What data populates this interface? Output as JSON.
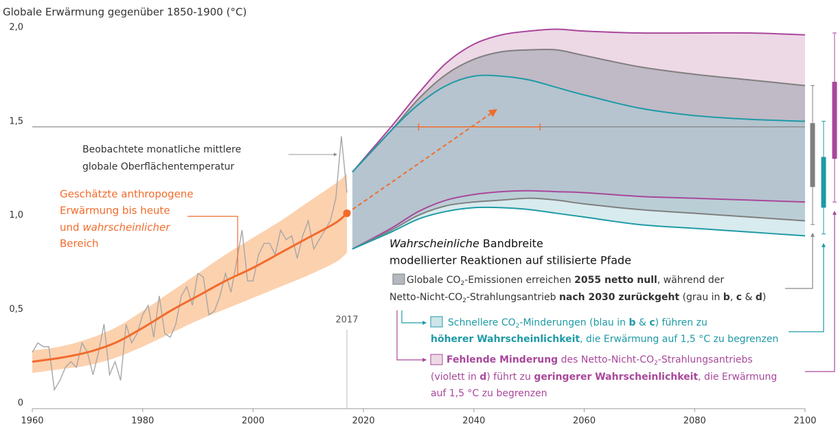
{
  "chart_data": {
    "type": "line",
    "title": "Globale Erwärmung gegenüber 1850-1900 (°C)",
    "xlim": [
      1960,
      2100
    ],
    "ylim": [
      0,
      2
    ],
    "xticks": [
      1960,
      1980,
      2000,
      2020,
      2040,
      2060,
      2080,
      2100
    ],
    "yticks": [
      0,
      {
        "value": 0.5,
        "label": "0,5"
      },
      {
        "value": 1,
        "label": "1,0"
      },
      {
        "value": 1.5,
        "label": "1,5"
      },
      {
        "value": 2,
        "label": "2,0"
      }
    ],
    "threshold": 1.5,
    "year_marker": 2017,
    "observed": {
      "color": "#a6a6a6",
      "label": [
        "Beobachtete monatliche mittlere",
        "globale Oberflächentemperatur"
      ],
      "x": [
        1960,
        1961,
        1962,
        1963,
        1964,
        1965,
        1966,
        1967,
        1968,
        1969,
        1970,
        1971,
        1972,
        1973,
        1974,
        1975,
        1976,
        1977,
        1978,
        1979,
        1980,
        1981,
        1982,
        1983,
        1984,
        1985,
        1986,
        1987,
        1988,
        1989,
        1990,
        1991,
        1992,
        1993,
        1994,
        1995,
        1996,
        1997,
        1998,
        1999,
        2000,
        2001,
        2002,
        2003,
        2004,
        2005,
        2006,
        2007,
        2008,
        2009,
        2010,
        2011,
        2012,
        2013,
        2014,
        2015,
        2016,
        2017
      ],
      "values": [
        0.3,
        0.35,
        0.33,
        0.33,
        0.1,
        0.15,
        0.22,
        0.25,
        0.22,
        0.35,
        0.3,
        0.18,
        0.3,
        0.45,
        0.18,
        0.25,
        0.15,
        0.45,
        0.35,
        0.4,
        0.5,
        0.55,
        0.38,
        0.6,
        0.4,
        0.38,
        0.45,
        0.6,
        0.65,
        0.55,
        0.72,
        0.7,
        0.5,
        0.52,
        0.6,
        0.72,
        0.62,
        0.78,
        0.95,
        0.68,
        0.68,
        0.82,
        0.88,
        0.88,
        0.82,
        0.95,
        0.9,
        0.92,
        0.8,
        0.92,
        1.0,
        0.85,
        0.9,
        0.95,
        1.0,
        1.12,
        1.45,
        1.15
      ]
    },
    "anthropogenic": {
      "color": "#f26b2c",
      "band_color": "#fcc9a0",
      "label": [
        "Geschätzte anthropogene",
        "Erwärmung bis heute",
        "und ",
        "wahrscheinlicher",
        "Bereich"
      ],
      "x": [
        1960,
        1965,
        1970,
        1975,
        1980,
        1985,
        1990,
        1995,
        2000,
        2005,
        2010,
        2015,
        2017
      ],
      "values": [
        0.25,
        0.27,
        0.3,
        0.35,
        0.43,
        0.52,
        0.6,
        0.68,
        0.75,
        0.83,
        0.91,
        0.99,
        1.04
      ],
      "lower": [
        0.19,
        0.21,
        0.23,
        0.27,
        0.33,
        0.4,
        0.47,
        0.53,
        0.59,
        0.65,
        0.71,
        0.78,
        0.83
      ],
      "upper": [
        0.31,
        0.33,
        0.37,
        0.43,
        0.52,
        0.62,
        0.72,
        0.82,
        0.91,
        1.0,
        1.1,
        1.2,
        1.25
      ]
    },
    "arrow": {
      "x": [
        2017,
        2044
      ],
      "y": [
        1.04,
        1.59
      ]
    },
    "crossing": {
      "x": [
        2030,
        2052
      ],
      "y": 1.5
    },
    "pathways_title": [
      "Wahrscheinliche",
      " Bandbreite",
      "modellierter Reaktionen auf stilisierte Pfade"
    ],
    "pathways_x": [
      2018,
      2025,
      2030,
      2035,
      2040,
      2045,
      2050,
      2055,
      2060,
      2070,
      2080,
      2090,
      2100
    ],
    "pathways": {
      "purple": {
        "color": "#a9479b",
        "fill": "#edd8e6",
        "upper": [
          1.26,
          1.5,
          1.68,
          1.84,
          1.94,
          1.99,
          2.01,
          2.02,
          2.01,
          2.0,
          2.0,
          2.0,
          1.99
        ],
        "lower": [
          0.85,
          0.96,
          1.05,
          1.11,
          1.14,
          1.155,
          1.16,
          1.155,
          1.15,
          1.13,
          1.12,
          1.11,
          1.1
        ],
        "likely": [
          1.33,
          1.74
        ],
        "whisker": [
          1.1,
          2.0
        ],
        "text": [
          [
            "Fehlende Minderung",
            " des Netto-Nicht-CO",
            "2",
            "-Strahlungsantriebs"
          ],
          [
            "(violett in ",
            "d",
            ") führt zu ",
            "geringerer Wahrscheinlichkeit",
            ", die Erwärmung"
          ],
          [
            "auf 1,5 °C zu begrenzen"
          ]
        ]
      },
      "gray": {
        "color": "#7f7f7f",
        "fill": "#9aa0ab",
        "upper": [
          1.26,
          1.48,
          1.65,
          1.78,
          1.86,
          1.9,
          1.91,
          1.91,
          1.88,
          1.82,
          1.78,
          1.75,
          1.72
        ],
        "lower": [
          0.85,
          0.95,
          1.03,
          1.08,
          1.1,
          1.11,
          1.12,
          1.11,
          1.09,
          1.06,
          1.04,
          1.02,
          1.0
        ],
        "likely": [
          1.18,
          1.52
        ],
        "whisker": [
          0.98,
          1.72
        ],
        "text": [
          [
            "Globale CO",
            "2",
            "-Emissionen erreichen ",
            "2055 netto null",
            ", während der"
          ],
          [
            "Netto-Nicht-CO",
            "2",
            "-Strahlungsantrieb ",
            "nach 2030 zurückgeht",
            " (grau in ",
            "b",
            ", ",
            "c",
            " & ",
            "d",
            ")"
          ]
        ]
      },
      "blue": {
        "color": "#1e9aa6",
        "fill": "#a9d3da",
        "upper": [
          1.26,
          1.48,
          1.62,
          1.72,
          1.77,
          1.77,
          1.75,
          1.71,
          1.67,
          1.6,
          1.56,
          1.54,
          1.53
        ],
        "lower": [
          0.85,
          0.94,
          1.01,
          1.05,
          1.07,
          1.07,
          1.06,
          1.04,
          1.02,
          0.98,
          0.96,
          0.94,
          0.92
        ],
        "likely": [
          1.07,
          1.34
        ],
        "whisker": [
          0.93,
          1.53
        ],
        "text": [
          [
            "Schnellere CO",
            "2",
            "-Minderungen (blau in ",
            "b",
            " & ",
            "c",
            ") führen zu"
          ],
          [
            "höherer Wahrscheinlichkeit",
            ", die Erwärmung auf 1,5 °C zu begrenzen"
          ]
        ]
      }
    }
  }
}
